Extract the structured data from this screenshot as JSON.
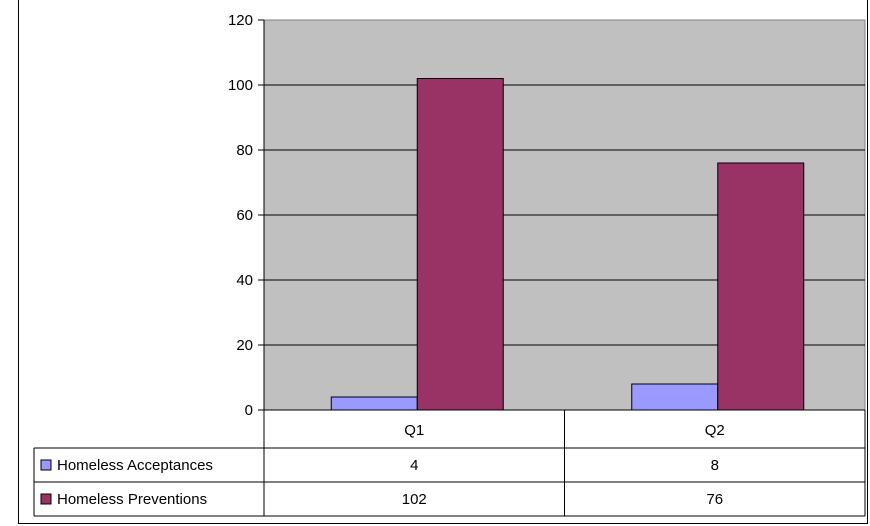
{
  "chart_data": {
    "type": "bar",
    "title": "",
    "xlabel": "",
    "ylabel": "",
    "categories": [
      "Q1",
      "Q2"
    ],
    "series": [
      {
        "name": "Homeless Acceptances",
        "values": [
          4,
          8
        ],
        "color": "#9999ff"
      },
      {
        "name": "Homeless Preventions",
        "values": [
          102,
          76
        ],
        "color": "#993366"
      }
    ],
    "ylim": [
      0,
      120
    ],
    "yticks": [
      "0",
      "20",
      "40",
      "60",
      "80",
      "100",
      "120"
    ],
    "grid": true,
    "plot_background": "#c0c0c0",
    "legend": "data-table"
  }
}
